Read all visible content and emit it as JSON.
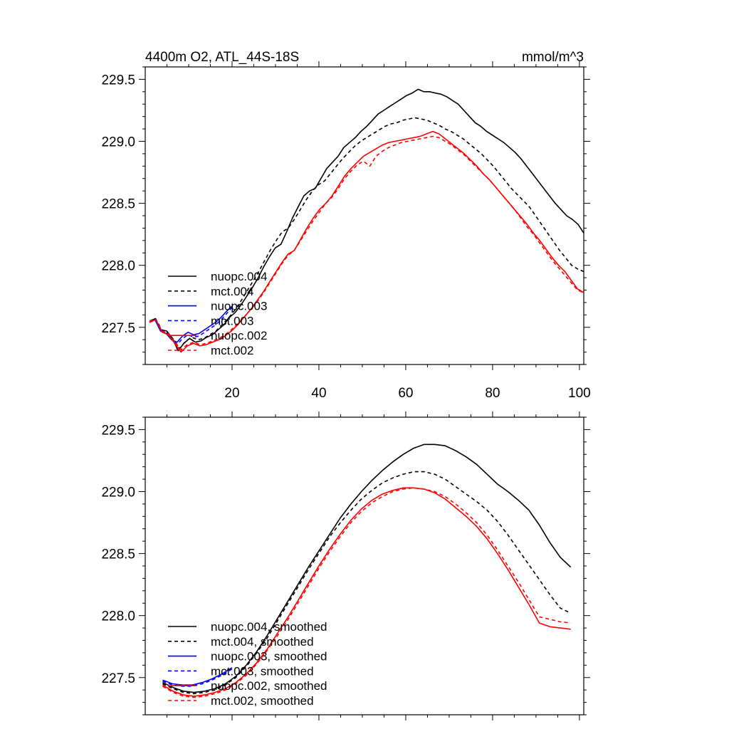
{
  "chart_data": [
    {
      "type": "line",
      "title_left": "4400m O2, ATL_44S-18S",
      "title_right": "mmol/m^3",
      "xlabel": "",
      "ylabel": "",
      "xlim": [
        0,
        101
      ],
      "ylim": [
        227.2,
        229.6
      ],
      "xticks": [
        20,
        40,
        60,
        80,
        100
      ],
      "yticks": [
        227.5,
        228.0,
        228.5,
        229.0,
        229.5
      ],
      "xtick_labels": [
        "20",
        "40",
        "60",
        "80",
        "100"
      ],
      "ytick_labels": [
        "227.5",
        "228.0",
        "228.5",
        "229.0",
        "229.5"
      ],
      "legend_position": "lower-left",
      "series": [
        {
          "name": "nuopc.004",
          "color": "#000000",
          "dash": "solid",
          "x_start": 1,
          "x_end": 101,
          "values": [
            227.55,
            227.57,
            227.48,
            227.47,
            227.41,
            227.31,
            227.37,
            227.41,
            227.38,
            227.39,
            227.42,
            227.44,
            227.48,
            227.52,
            227.58,
            227.62,
            227.68,
            227.75,
            227.82,
            227.9,
            227.99,
            228.07,
            228.14,
            228.17,
            228.27,
            228.38,
            228.47,
            228.56,
            228.6,
            228.62,
            228.7,
            228.78,
            228.83,
            228.88,
            228.95,
            228.99,
            229.03,
            229.08,
            229.12,
            229.17,
            229.22,
            229.25,
            229.28,
            229.31,
            229.34,
            229.37,
            229.39,
            229.42,
            229.4,
            229.4,
            229.39,
            229.38,
            229.36,
            229.33,
            229.3,
            229.25,
            229.2,
            229.15,
            229.12,
            229.08,
            229.05,
            229.02,
            228.99,
            228.95,
            228.91,
            228.86,
            228.8,
            228.74,
            228.68,
            228.62,
            228.56,
            228.5,
            228.45,
            228.4,
            228.37,
            228.33,
            228.26
          ]
        },
        {
          "name": "mct.004",
          "color": "#000000",
          "dash": "dashed",
          "x_start": 1,
          "x_end": 101,
          "values": [
            227.54,
            227.57,
            227.48,
            227.46,
            227.4,
            227.33,
            227.39,
            227.42,
            227.4,
            227.41,
            227.44,
            227.47,
            227.52,
            227.57,
            227.63,
            227.7,
            227.78,
            227.86,
            227.94,
            228.03,
            228.12,
            228.2,
            228.27,
            228.3,
            228.37,
            228.45,
            228.53,
            228.6,
            228.65,
            228.68,
            228.74,
            228.8,
            228.86,
            228.91,
            228.96,
            229.0,
            229.03,
            229.06,
            229.09,
            229.12,
            229.14,
            229.15,
            229.17,
            229.18,
            229.19,
            229.18,
            229.17,
            229.15,
            229.13,
            229.1,
            229.08,
            229.05,
            229.02,
            228.98,
            228.94,
            228.9,
            228.85,
            228.8,
            228.74,
            228.68,
            228.62,
            228.57,
            228.52,
            228.47,
            228.4,
            228.33,
            228.26,
            228.19,
            228.12,
            228.06,
            228.0,
            227.97,
            227.95
          ]
        },
        {
          "name": "nuopc.003",
          "color": "#0000ff",
          "dash": "solid",
          "x_start": 1,
          "x_end": 20,
          "values": [
            227.54,
            227.56,
            227.47,
            227.45,
            227.4,
            227.38,
            227.43,
            227.46,
            227.44,
            227.45,
            227.48,
            227.51,
            227.54,
            227.58,
            227.63,
            227.67
          ]
        },
        {
          "name": "mct.003",
          "color": "#0000ff",
          "dash": "dashed",
          "x_start": 1,
          "x_end": 20,
          "values": [
            227.54,
            227.57,
            227.48,
            227.46,
            227.41,
            227.36,
            227.41,
            227.44,
            227.42,
            227.43,
            227.46,
            227.49,
            227.52,
            227.56,
            227.61,
            227.66
          ]
        },
        {
          "name": "nuopc.002",
          "color": "#ff0000",
          "dash": "solid",
          "x_start": 1,
          "x_end": 101,
          "values": [
            227.55,
            227.56,
            227.46,
            227.44,
            227.37,
            227.3,
            227.35,
            227.37,
            227.35,
            227.36,
            227.38,
            227.4,
            227.43,
            227.47,
            227.52,
            227.58,
            227.64,
            227.71,
            227.78,
            227.86,
            227.94,
            228.02,
            228.09,
            228.12,
            228.21,
            228.3,
            228.38,
            228.45,
            228.5,
            228.56,
            228.64,
            228.72,
            228.78,
            228.83,
            228.88,
            228.91,
            228.94,
            228.97,
            228.99,
            229.0,
            229.01,
            229.02,
            229.03,
            229.04,
            229.06,
            229.08,
            229.06,
            229.02,
            228.98,
            228.94,
            228.9,
            228.85,
            228.8,
            228.74,
            228.69,
            228.63,
            228.57,
            228.51,
            228.45,
            228.39,
            228.33,
            228.26,
            228.2,
            228.13,
            228.06,
            228.0,
            227.95,
            227.88,
            227.81,
            227.78
          ]
        },
        {
          "name": "mct.002",
          "color": "#ff0000",
          "dash": "dashed",
          "x_start": 1,
          "x_end": 101,
          "values": [
            227.54,
            227.56,
            227.47,
            227.45,
            227.38,
            227.32,
            227.36,
            227.38,
            227.36,
            227.37,
            227.39,
            227.41,
            227.44,
            227.48,
            227.53,
            227.58,
            227.64,
            227.7,
            227.77,
            227.85,
            227.93,
            228.01,
            228.08,
            228.12,
            228.2,
            228.28,
            228.36,
            228.43,
            228.5,
            228.55,
            228.62,
            228.7,
            228.76,
            228.81,
            228.84,
            228.8,
            228.88,
            228.92,
            228.95,
            228.97,
            228.99,
            229.0,
            229.01,
            229.02,
            229.03,
            229.04,
            229.03,
            229.0,
            228.97,
            228.93,
            228.89,
            228.84,
            228.79,
            228.74,
            228.69,
            228.63,
            228.57,
            228.51,
            228.45,
            228.38,
            228.31,
            228.25,
            228.18,
            228.11,
            228.04,
            227.98,
            227.92,
            227.86,
            227.8,
            227.78
          ]
        }
      ]
    },
    {
      "type": "line",
      "xlim": [
        0,
        101
      ],
      "ylim": [
        227.2,
        229.6
      ],
      "xticks": [
        20,
        40,
        60,
        80,
        100
      ],
      "yticks": [
        227.5,
        228.0,
        228.5,
        229.0,
        229.5
      ],
      "ytick_labels": [
        "227.5",
        "228.0",
        "228.5",
        "229.0",
        "229.5"
      ],
      "legend_position": "lower-left",
      "series": [
        {
          "name": "nuopc.004, smoothed",
          "color": "#000000",
          "dash": "solid",
          "x_start": 4,
          "x_end": 98,
          "values": [
            227.46,
            227.42,
            227.39,
            227.38,
            227.39,
            227.41,
            227.45,
            227.51,
            227.6,
            227.71,
            227.84,
            227.98,
            228.12,
            228.26,
            228.4,
            228.53,
            228.66,
            228.79,
            228.9,
            229.0,
            229.09,
            229.17,
            229.24,
            229.3,
            229.35,
            229.38,
            229.38,
            229.37,
            229.33,
            229.28,
            229.22,
            229.14,
            229.06,
            229.0,
            228.93,
            228.85,
            228.73,
            228.59,
            228.47,
            228.39
          ]
        },
        {
          "name": "mct.004, smoothed",
          "color": "#000000",
          "dash": "dashed",
          "x_start": 4,
          "x_end": 98,
          "values": [
            227.45,
            227.41,
            227.38,
            227.37,
            227.38,
            227.4,
            227.44,
            227.5,
            227.59,
            227.7,
            227.82,
            227.96,
            228.1,
            228.24,
            228.38,
            228.51,
            228.64,
            228.75,
            228.85,
            228.94,
            229.01,
            229.07,
            229.11,
            229.14,
            229.16,
            229.16,
            229.14,
            229.1,
            229.04,
            228.98,
            228.92,
            228.85,
            228.76,
            228.65,
            228.53,
            228.41,
            228.29,
            228.17,
            228.06,
            228.02
          ]
        },
        {
          "name": "nuopc.003, smoothed",
          "color": "#0000ff",
          "dash": "solid",
          "x_start": 4,
          "x_end": 20,
          "values": [
            227.48,
            227.45,
            227.44,
            227.44,
            227.46,
            227.49,
            227.53,
            227.58
          ]
        },
        {
          "name": "mct.003, smoothed",
          "color": "#0000ff",
          "dash": "dashed",
          "x_start": 4,
          "x_end": 20,
          "values": [
            227.47,
            227.44,
            227.43,
            227.43,
            227.45,
            227.48,
            227.52,
            227.57
          ]
        },
        {
          "name": "nuopc.002, smoothed",
          "color": "#ff0000",
          "dash": "solid",
          "x_start": 4,
          "x_end": 98,
          "values": [
            227.44,
            227.39,
            227.36,
            227.35,
            227.36,
            227.38,
            227.41,
            227.46,
            227.53,
            227.62,
            227.73,
            227.86,
            227.99,
            228.13,
            228.27,
            228.41,
            228.54,
            228.66,
            228.77,
            228.86,
            228.93,
            228.98,
            229.01,
            229.03,
            229.03,
            229.02,
            228.99,
            228.94,
            228.87,
            228.8,
            228.72,
            228.62,
            228.5,
            228.37,
            228.23,
            228.09,
            227.94,
            227.91,
            227.9,
            227.89
          ]
        },
        {
          "name": "mct.002, smoothed",
          "color": "#ff0000",
          "dash": "dashed",
          "x_start": 4,
          "x_end": 98,
          "values": [
            227.43,
            227.38,
            227.35,
            227.34,
            227.35,
            227.37,
            227.4,
            227.45,
            227.52,
            227.61,
            227.72,
            227.84,
            227.97,
            228.11,
            228.25,
            228.39,
            228.52,
            228.64,
            228.75,
            228.84,
            228.91,
            228.96,
            229.0,
            229.02,
            229.03,
            229.02,
            229.0,
            228.96,
            228.9,
            228.83,
            228.75,
            228.65,
            228.53,
            228.4,
            228.27,
            228.13,
            227.99,
            227.97,
            227.95,
            227.94
          ]
        }
      ]
    }
  ]
}
